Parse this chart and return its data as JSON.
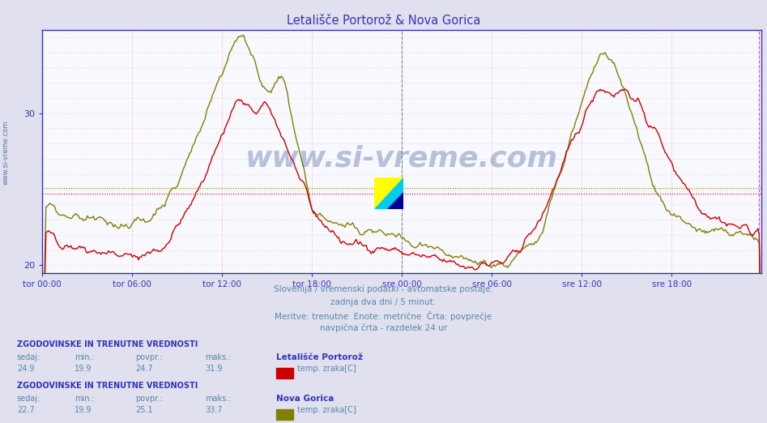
{
  "title_display": "Letališče Portorož & Nova Gorica",
  "ylim": [
    19.5,
    35.5
  ],
  "yticks": [
    20,
    30
  ],
  "x_labels": [
    "tor 00:00",
    "tor 06:00",
    "tor 12:00",
    "tor 18:00",
    "sre 00:00",
    "sre 06:00",
    "sre 12:00",
    "sre 18:00"
  ],
  "n_points": 576,
  "avg_portoroz": 24.7,
  "avg_nova_gorica": 25.1,
  "color_portoroz": "#cc0000",
  "color_nova_gorica": "#808000",
  "grid_color": "#ffcccc",
  "background_color": "#e0e0ee",
  "plot_bg": "#f8f8ff",
  "subtitle1": "Slovenija / vremenski podatki - avtomatske postaje.",
  "subtitle2": "zadnja dva dni / 5 minut.",
  "subtitle3": "Meritve: trenutne  Enote: metrične  Črta: povprečje",
  "subtitle4": "navpična črta - razdelek 24 ur",
  "legend1_title": "Letališče Portorož",
  "legend1_label": "temp. zraka[C]",
  "legend2_title": "Nova Gorica",
  "legend2_label": "temp. zraka[C]",
  "stats1": {
    "sedaj": 24.9,
    "min": 19.9,
    "povpr": 24.7,
    "maks": 31.9
  },
  "stats2": {
    "sedaj": 22.7,
    "min": 19.9,
    "povpr": 25.1,
    "maks": 33.7
  },
  "watermark": "www.si-vreme.com",
  "left_text": "www.si-vreme.com"
}
